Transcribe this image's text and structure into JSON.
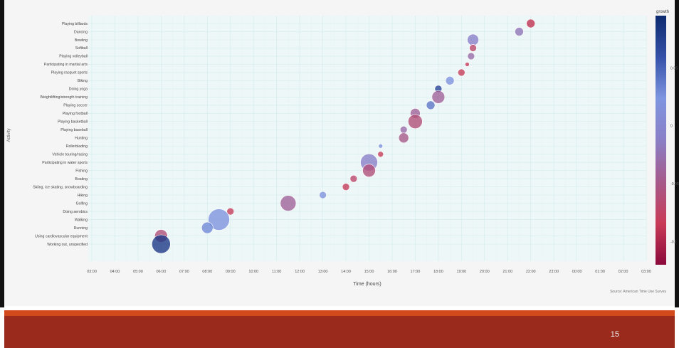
{
  "slide": {
    "number": "15"
  },
  "chart_data": {
    "type": "scatter",
    "xlabel": "Time (hours)",
    "ylabel": "Activity",
    "source": "Source: American Time Use Survey",
    "x_ticks": [
      "03:00",
      "04:00",
      "05:00",
      "06:00",
      "07:00",
      "08:00",
      "09:00",
      "10:00",
      "11:00",
      "12:00",
      "13:00",
      "14:00",
      "15:00",
      "16:00",
      "17:00",
      "18:00",
      "19:00",
      "20:00",
      "21:00",
      "22:00",
      "23:00",
      "00:00",
      "01:00",
      "02:00",
      "03:00"
    ],
    "categories": [
      "Playing billiards",
      "Dancing",
      "Bowling",
      "Softball",
      "Playing volleyball",
      "Participating in martial arts",
      "Playing racquet sports",
      "Biking",
      "Doing yoga",
      "Weightlifting/strength training",
      "Playing soccer",
      "Playing football",
      "Playing basketball",
      "Playing baseball",
      "Hunting",
      "Rollerblading",
      "Vehicle touring/racing",
      "Participating in water sports",
      "Fishing",
      "Boating",
      "Skiing, ice skating, snowboarding",
      "Hiking",
      "Golfing",
      "Doing aerobics",
      "Walking",
      "Running",
      "Using cardiovascular equipment",
      "Working out, unspecified"
    ],
    "colorbar": {
      "title": "growth",
      "ticks": [
        {
          "value": 0.05,
          "label": "0.05"
        },
        {
          "value": 0,
          "label": "0"
        },
        {
          "value": -0.05,
          "label": "-0.05"
        },
        {
          "value": -0.1,
          "label": "-0.1"
        }
      ],
      "range": [
        -0.12,
        0.095
      ],
      "colors": [
        "#8b0a3b",
        "#c93a57",
        "#a65a8a",
        "#8a7fc6",
        "#7f95e0",
        "#3551a8",
        "#0d2a6e"
      ]
    },
    "points": [
      {
        "activity": "Playing billiards",
        "x": "22:00",
        "size": 6,
        "growth": -0.09
      },
      {
        "activity": "Dancing",
        "x": "21:30",
        "size": 6,
        "growth": -0.02
      },
      {
        "activity": "Bowling",
        "x": "19:30",
        "size": 8,
        "growth": -0.01
      },
      {
        "activity": "Softball",
        "x": "19:30",
        "size": 5,
        "growth": -0.07
      },
      {
        "activity": "Playing volleyball",
        "x": "19:25",
        "size": 5,
        "growth": -0.03
      },
      {
        "activity": "Participating in martial arts",
        "x": "19:15",
        "size": 3,
        "growth": -0.08
      },
      {
        "activity": "Playing racquet sports",
        "x": "19:00",
        "size": 5,
        "growth": -0.08
      },
      {
        "activity": "Biking",
        "x": "18:30",
        "size": 6,
        "growth": 0.02
      },
      {
        "activity": "Doing yoga",
        "x": "18:00",
        "size": 5,
        "growth": 0.07
      },
      {
        "activity": "Weightlifting/strength training",
        "x": "18:00",
        "size": 9,
        "growth": -0.04
      },
      {
        "activity": "Playing soccer",
        "x": "17:40",
        "size": 6,
        "growth": 0.04
      },
      {
        "activity": "Playing football",
        "x": "17:00",
        "size": 7,
        "growth": -0.04
      },
      {
        "activity": "Playing basketball",
        "x": "17:00",
        "size": 10,
        "growth": -0.06
      },
      {
        "activity": "Playing baseball",
        "x": "16:30",
        "size": 5,
        "growth": -0.03
      },
      {
        "activity": "Hunting",
        "x": "16:30",
        "size": 7,
        "growth": -0.05
      },
      {
        "activity": "Rollerblading",
        "x": "15:30",
        "size": 3,
        "growth": 0.02
      },
      {
        "activity": "Vehicle touring/racing",
        "x": "15:30",
        "size": 4,
        "growth": -0.08
      },
      {
        "activity": "Participating in water sports",
        "x": "15:00",
        "size": 12,
        "growth": -0.01
      },
      {
        "activity": "Fishing",
        "x": "15:00",
        "size": 9,
        "growth": -0.06
      },
      {
        "activity": "Boating",
        "x": "14:20",
        "size": 5,
        "growth": -0.07
      },
      {
        "activity": "Skiing, ice skating, snowboarding",
        "x": "14:00",
        "size": 5,
        "growth": -0.08
      },
      {
        "activity": "Hiking",
        "x": "13:00",
        "size": 5,
        "growth": 0.02
      },
      {
        "activity": "Golfing",
        "x": "11:30",
        "size": 11,
        "growth": -0.04
      },
      {
        "activity": "Doing aerobics",
        "x": "09:00",
        "size": 5,
        "growth": -0.08
      },
      {
        "activity": "Walking",
        "x": "08:30",
        "size": 15,
        "growth": 0.02
      },
      {
        "activity": "Running",
        "x": "08:00",
        "size": 8,
        "growth": 0.03
      },
      {
        "activity": "Using cardiovascular equipment",
        "x": "06:00",
        "size": 9,
        "growth": -0.06
      },
      {
        "activity": "Working out, unspecified",
        "x": "06:00",
        "size": 13,
        "growth": 0.08
      }
    ]
  }
}
